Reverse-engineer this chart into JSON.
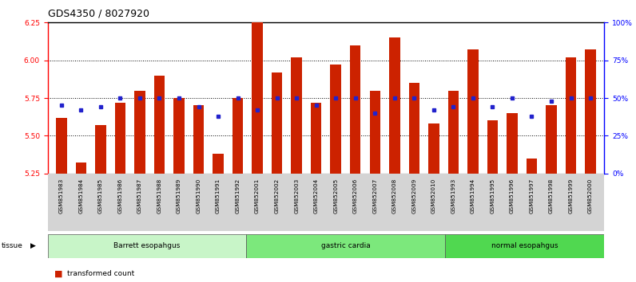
{
  "title": "GDS4350 / 8027920",
  "samples": [
    "GSM851983",
    "GSM851984",
    "GSM851985",
    "GSM851986",
    "GSM851987",
    "GSM851988",
    "GSM851989",
    "GSM851990",
    "GSM851991",
    "GSM851992",
    "GSM852001",
    "GSM852002",
    "GSM852003",
    "GSM852004",
    "GSM852005",
    "GSM852006",
    "GSM852007",
    "GSM852008",
    "GSM852009",
    "GSM852010",
    "GSM851993",
    "GSM851994",
    "GSM851995",
    "GSM851996",
    "GSM851997",
    "GSM851998",
    "GSM851999",
    "GSM852000"
  ],
  "red_values": [
    5.62,
    5.32,
    5.57,
    5.72,
    5.8,
    5.9,
    5.75,
    5.7,
    5.38,
    5.75,
    6.25,
    5.92,
    6.02,
    5.72,
    5.97,
    6.1,
    5.8,
    6.15,
    5.85,
    5.58,
    5.8,
    6.07,
    5.6,
    5.65,
    5.35,
    5.7,
    6.02,
    6.07
  ],
  "blue_percentiles": [
    45,
    42,
    44,
    50,
    50,
    50,
    50,
    44,
    38,
    50,
    42,
    50,
    50,
    45,
    50,
    50,
    40,
    50,
    50,
    42,
    44,
    50,
    44,
    50,
    38,
    48,
    50,
    50
  ],
  "groups": [
    {
      "label": "Barrett esopahgus",
      "start": 0,
      "end": 10,
      "color": "#c8f5c8"
    },
    {
      "label": "gastric cardia",
      "start": 10,
      "end": 20,
      "color": "#7ce87c"
    },
    {
      "label": "normal esopahgus",
      "start": 20,
      "end": 28,
      "color": "#50d850"
    }
  ],
  "ylim_left": [
    5.25,
    6.25
  ],
  "ylim_right": [
    0,
    100
  ],
  "yticks_left": [
    5.25,
    5.5,
    5.75,
    6.0,
    6.25
  ],
  "yticks_right": [
    0,
    25,
    50,
    75,
    100
  ],
  "bar_color": "#cc2200",
  "dot_color": "#2222cc",
  "bar_bottom": 5.25,
  "bg_color": "#ffffff",
  "xtick_bg": "#d4d4d4"
}
